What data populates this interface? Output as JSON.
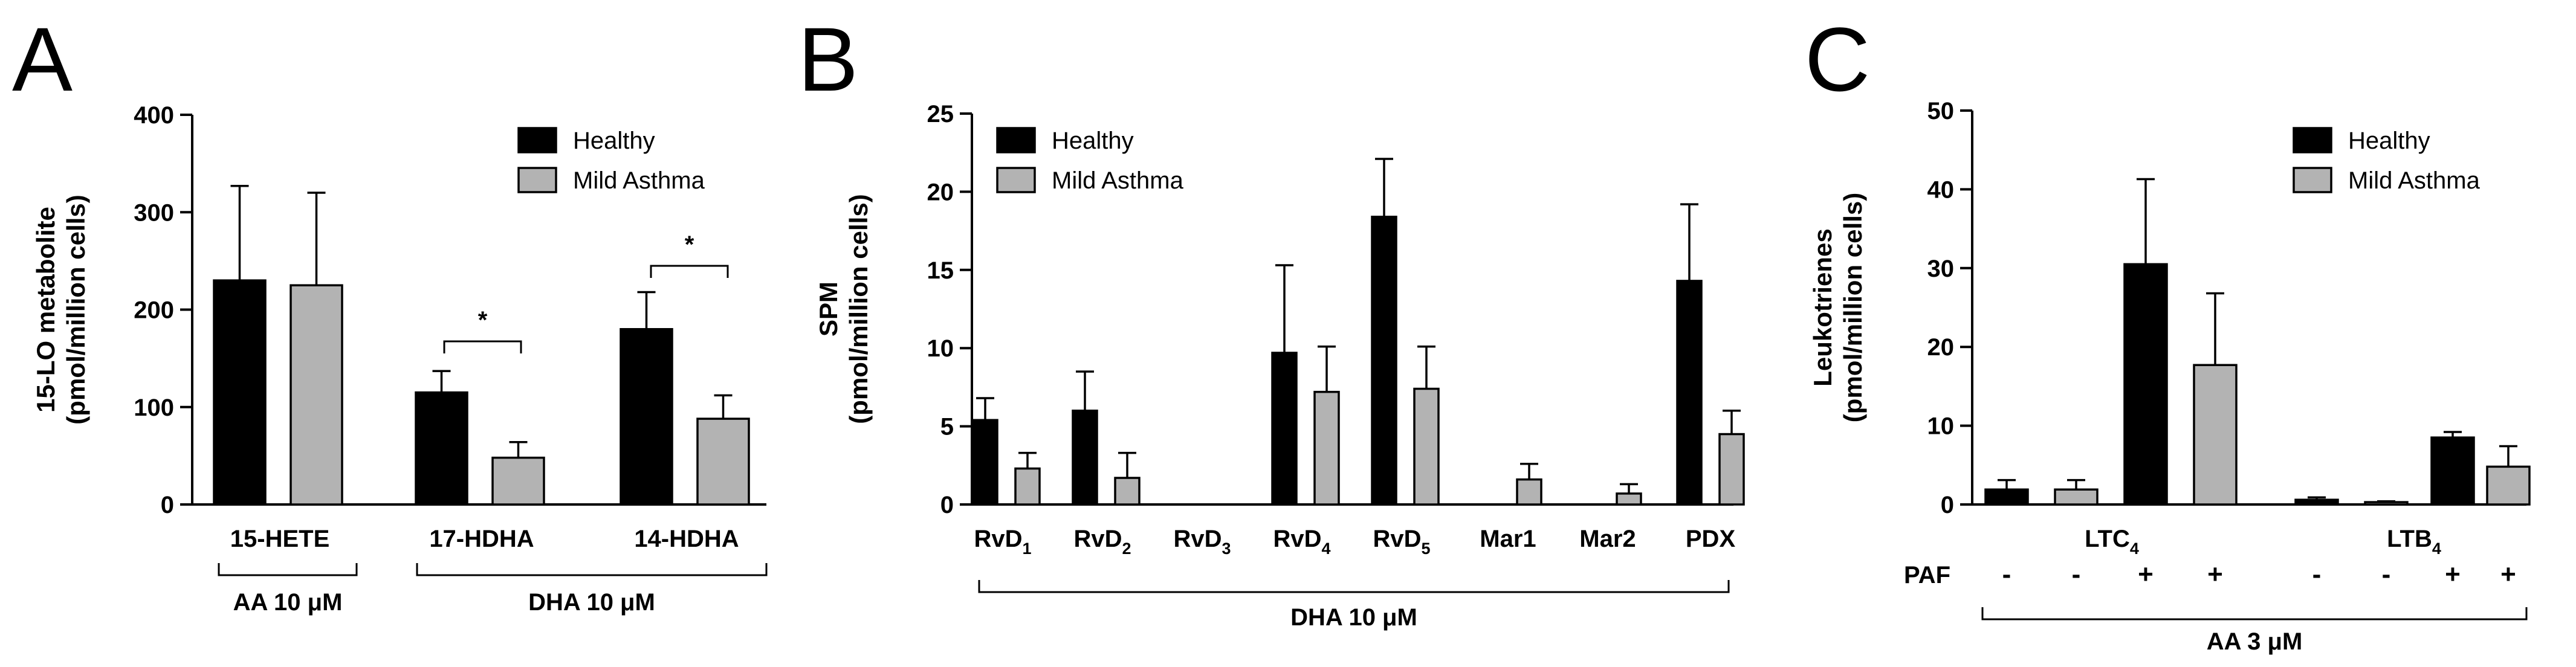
{
  "chart_data": [
    {
      "panel": "A",
      "type": "bar",
      "ylabel_line1": "15-LO metabolite",
      "ylabel_line2": "(pmol/million cells)",
      "ylim": [
        0,
        400
      ],
      "yticks": [
        "0",
        "100",
        "200",
        "300",
        "400"
      ],
      "categories": [
        "15-HETE",
        "17-HDHA",
        "14-HDHA"
      ],
      "series": [
        {
          "name": "Healthy",
          "color": "#000000",
          "values": [
            230,
            115,
            180
          ],
          "errors": [
            97,
            22,
            38
          ]
        },
        {
          "name": "Mild Asthma",
          "color": "#b3b3b3",
          "values": [
            225,
            48,
            88
          ],
          "errors": [
            95,
            16,
            24
          ]
        }
      ],
      "legend": [
        "Healthy",
        "Mild Asthma"
      ],
      "significance": [
        "*",
        "*"
      ],
      "groups": [
        {
          "label": "AA 10 μM",
          "categories": [
            "15-HETE"
          ]
        },
        {
          "label": "DHA 10 μM",
          "categories": [
            "17-HDHA",
            "14-HDHA"
          ]
        }
      ]
    },
    {
      "panel": "B",
      "type": "bar",
      "ylabel_line1": "SPM",
      "ylabel_line2": "(pmol/million cells)",
      "ylim": [
        0,
        25
      ],
      "yticks": [
        "0",
        "5",
        "10",
        "15",
        "20",
        "25"
      ],
      "categories": [
        {
          "base": "RvD",
          "sub": "1"
        },
        {
          "base": "RvD",
          "sub": "2"
        },
        {
          "base": "RvD",
          "sub": "3"
        },
        {
          "base": "RvD",
          "sub": "4"
        },
        {
          "base": "RvD",
          "sub": "5"
        },
        {
          "base": "Mar1",
          "sub": ""
        },
        {
          "base": "Mar2",
          "sub": ""
        },
        {
          "base": "PDX",
          "sub": ""
        }
      ],
      "series": [
        {
          "name": "Healthy",
          "color": "#000000",
          "values": [
            5.4,
            6.0,
            0,
            9.7,
            18.4,
            0,
            0,
            14.3
          ],
          "errors": [
            1.4,
            2.5,
            0,
            5.6,
            3.7,
            0,
            0,
            4.9
          ]
        },
        {
          "name": "Mild Asthma",
          "color": "#b3b3b3",
          "values": [
            2.3,
            1.7,
            0,
            7.2,
            7.4,
            1.6,
            0.7,
            4.5
          ],
          "errors": [
            1.0,
            1.6,
            0,
            2.9,
            2.7,
            1.0,
            0.6,
            1.5
          ]
        }
      ],
      "legend": [
        "Healthy",
        "Mild Asthma"
      ],
      "groups": [
        {
          "label": "DHA 10 μM"
        }
      ]
    },
    {
      "panel": "C",
      "type": "bar",
      "ylabel_line1": "Leukotrienes",
      "ylabel_line2": "(pmol/million cells)",
      "ylim": [
        0,
        50
      ],
      "yticks": [
        "0",
        "10",
        "20",
        "30",
        "40",
        "50"
      ],
      "categories": [
        {
          "base": "LTC",
          "sub": "4"
        },
        {
          "base": "LTB",
          "sub": "4"
        }
      ],
      "bars": [
        {
          "group": "LTC4",
          "series": "Healthy",
          "paf": "-",
          "value": 1.9,
          "error": 1.2
        },
        {
          "group": "LTC4",
          "series": "Mild Asthma",
          "paf": "-",
          "value": 1.9,
          "error": 1.2
        },
        {
          "group": "LTC4",
          "series": "Healthy",
          "paf": "+",
          "value": 30.5,
          "error": 10.8
        },
        {
          "group": "LTC4",
          "series": "Mild Asthma",
          "paf": "+",
          "value": 17.7,
          "error": 9.1
        },
        {
          "group": "LTB4",
          "series": "Healthy",
          "paf": "-",
          "value": 0.6,
          "error": 0.3
        },
        {
          "group": "LTB4",
          "series": "Mild Asthma",
          "paf": "-",
          "value": 0.3,
          "error": 0.1
        },
        {
          "group": "LTB4",
          "series": "Healthy",
          "paf": "+",
          "value": 8.5,
          "error": 0.7
        },
        {
          "group": "LTB4",
          "series": "Mild Asthma",
          "paf": "+",
          "value": 4.8,
          "error": 2.6
        }
      ],
      "series_colors": {
        "Healthy": "#000000",
        "Mild Asthma": "#b3b3b3"
      },
      "legend": [
        "Healthy",
        "Mild Asthma"
      ],
      "paf_label": "PAF",
      "groups": [
        {
          "label": "AA 3 μM"
        }
      ]
    }
  ]
}
